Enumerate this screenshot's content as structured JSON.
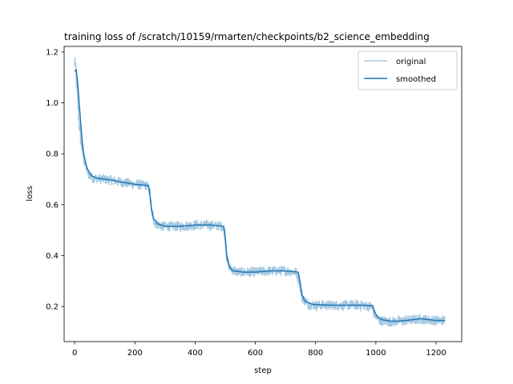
{
  "chart_data": {
    "type": "line",
    "title": "training loss of /scratch/10159/rmarten/checkpoints/b2_science_embedding",
    "xlabel": "step",
    "ylabel": "loss",
    "xlim": [
      -35,
      1285
    ],
    "ylim": [
      0.062,
      1.222
    ],
    "xticks": [
      0,
      200,
      400,
      600,
      800,
      1000,
      1200
    ],
    "yticks": [
      0.2,
      0.4,
      0.6,
      0.8,
      1.0,
      1.2
    ],
    "xtick_labels": [
      "0",
      "200",
      "400",
      "600",
      "800",
      "1000",
      "1200"
    ],
    "ytick_labels": [
      "0.2",
      "0.4",
      "0.6",
      "0.8",
      "1.0",
      "1.2"
    ],
    "legend_position": "upper right",
    "grid": false,
    "series": [
      {
        "name": "original",
        "color": "#1f77b4",
        "alpha": 0.4,
        "x_range": [
          0,
          1230
        ],
        "noise_amplitude": 0.02,
        "points": [
          [
            0,
            1.17
          ],
          [
            5,
            1.1
          ],
          [
            10,
            1.0
          ],
          [
            15,
            0.92
          ],
          [
            20,
            0.86
          ],
          [
            30,
            0.78
          ],
          [
            45,
            0.72
          ],
          [
            60,
            0.705
          ],
          [
            100,
            0.7
          ],
          [
            150,
            0.69
          ],
          [
            200,
            0.68
          ],
          [
            240,
            0.675
          ],
          [
            248,
            0.66
          ],
          [
            255,
            0.58
          ],
          [
            265,
            0.53
          ],
          [
            290,
            0.515
          ],
          [
            350,
            0.515
          ],
          [
            400,
            0.52
          ],
          [
            450,
            0.52
          ],
          [
            490,
            0.515
          ],
          [
            498,
            0.49
          ],
          [
            505,
            0.39
          ],
          [
            515,
            0.35
          ],
          [
            540,
            0.335
          ],
          [
            600,
            0.335
          ],
          [
            650,
            0.34
          ],
          [
            700,
            0.34
          ],
          [
            735,
            0.335
          ],
          [
            745,
            0.3
          ],
          [
            755,
            0.235
          ],
          [
            775,
            0.21
          ],
          [
            800,
            0.205
          ],
          [
            850,
            0.205
          ],
          [
            900,
            0.205
          ],
          [
            950,
            0.205
          ],
          [
            985,
            0.2
          ],
          [
            995,
            0.17
          ],
          [
            1010,
            0.145
          ],
          [
            1050,
            0.14
          ],
          [
            1100,
            0.145
          ],
          [
            1150,
            0.15
          ],
          [
            1200,
            0.145
          ],
          [
            1230,
            0.145
          ]
        ]
      },
      {
        "name": "smoothed",
        "color": "#1f77b4",
        "alpha": 1.0,
        "points": [
          [
            0,
            1.125
          ],
          [
            5,
            1.13
          ],
          [
            10,
            1.08
          ],
          [
            15,
            1.0
          ],
          [
            20,
            0.92
          ],
          [
            25,
            0.85
          ],
          [
            30,
            0.8
          ],
          [
            40,
            0.745
          ],
          [
            55,
            0.715
          ],
          [
            70,
            0.705
          ],
          [
            100,
            0.7
          ],
          [
            130,
            0.695
          ],
          [
            150,
            0.69
          ],
          [
            200,
            0.68
          ],
          [
            245,
            0.675
          ],
          [
            250,
            0.64
          ],
          [
            255,
            0.58
          ],
          [
            262,
            0.545
          ],
          [
            275,
            0.525
          ],
          [
            300,
            0.515
          ],
          [
            350,
            0.515
          ],
          [
            400,
            0.52
          ],
          [
            450,
            0.52
          ],
          [
            495,
            0.515
          ],
          [
            500,
            0.47
          ],
          [
            505,
            0.4
          ],
          [
            512,
            0.36
          ],
          [
            525,
            0.34
          ],
          [
            560,
            0.335
          ],
          [
            600,
            0.335
          ],
          [
            650,
            0.34
          ],
          [
            700,
            0.34
          ],
          [
            742,
            0.335
          ],
          [
            748,
            0.3
          ],
          [
            755,
            0.245
          ],
          [
            765,
            0.22
          ],
          [
            790,
            0.208
          ],
          [
            850,
            0.205
          ],
          [
            900,
            0.205
          ],
          [
            950,
            0.205
          ],
          [
            990,
            0.203
          ],
          [
            995,
            0.18
          ],
          [
            1005,
            0.16
          ],
          [
            1020,
            0.148
          ],
          [
            1050,
            0.142
          ],
          [
            1080,
            0.143
          ],
          [
            1100,
            0.145
          ],
          [
            1150,
            0.152
          ],
          [
            1200,
            0.145
          ],
          [
            1230,
            0.145
          ]
        ]
      }
    ]
  }
}
